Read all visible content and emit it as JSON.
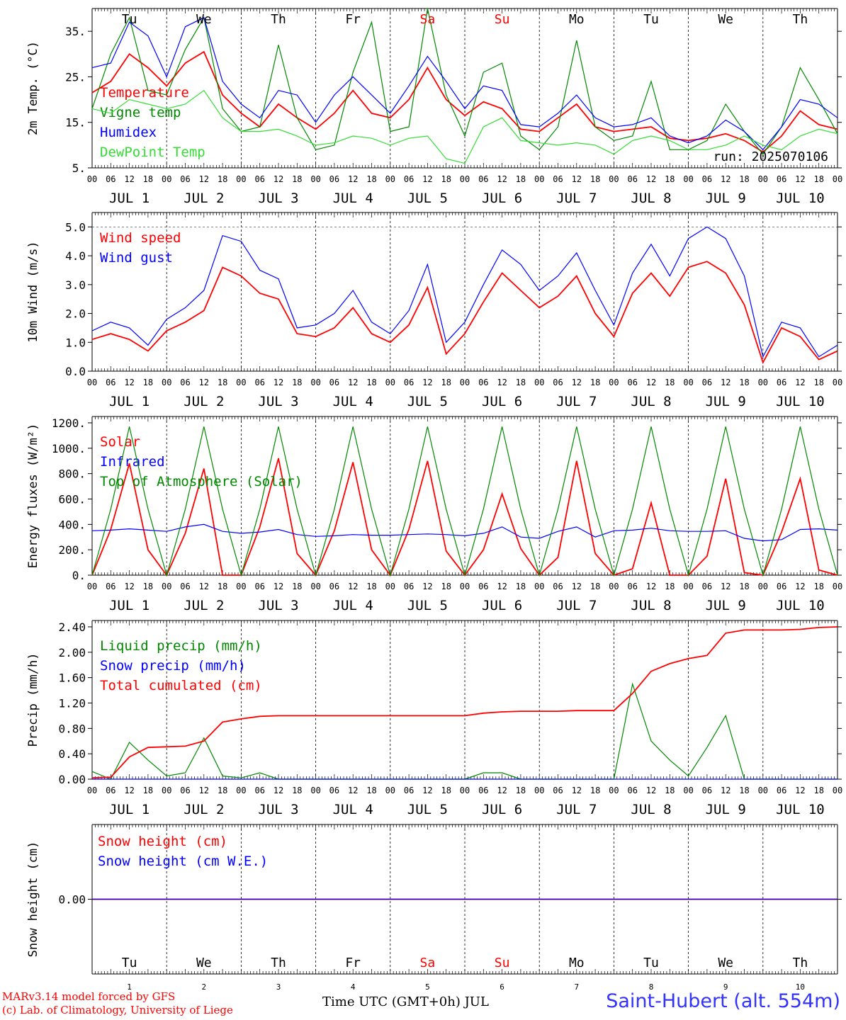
{
  "run": "run: 2025070106",
  "station": "Saint-Hubert (alt. 554m)",
  "credits": [
    "MARv3.14 model forced by GFS",
    "(c) Lab. of Climatology, University of Liege"
  ],
  "time_axis_label": "Time UTC (GMT+0h) JUL",
  "day_names": [
    "Tu",
    "We",
    "Th",
    "Fr",
    "Sa",
    "Su",
    "Mo",
    "Tu",
    "We",
    "Th"
  ],
  "day_name_colors": [
    "#000000",
    "#000000",
    "#000000",
    "#000000",
    "#ff0000",
    "#ff0000",
    "#000000",
    "#000000",
    "#000000",
    "#000000"
  ],
  "day_labels": [
    "JUL  1",
    "JUL  2",
    "JUL  3",
    "JUL  4",
    "JUL  5",
    "JUL  6",
    "JUL  7",
    "JUL  8",
    "JUL  9",
    "JUL 10"
  ],
  "day_numbers": [
    "1",
    "2",
    "3",
    "4",
    "5",
    "6",
    "7",
    "8",
    "9",
    "10"
  ],
  "hour_ticks": [
    "00",
    "06",
    "12",
    "18"
  ],
  "chart_data": [
    {
      "type": "line",
      "ylabel": "2m Temp. (°C)",
      "ylim": [
        5,
        40
      ],
      "yticks": [
        "5.",
        "15.",
        "25.",
        "35."
      ],
      "ytick_values": [
        5,
        15,
        25,
        35
      ],
      "x_hours": [
        0,
        6,
        12,
        18,
        24,
        30,
        36,
        42,
        48,
        54,
        60,
        66,
        72,
        78,
        84,
        90,
        96,
        102,
        108,
        114,
        120,
        126,
        132,
        138,
        144,
        150,
        156,
        162,
        168,
        174,
        180,
        186,
        192,
        198,
        204,
        210,
        216,
        222,
        228,
        234,
        240
      ],
      "series": [
        {
          "name": "Temperature",
          "color": "#ff0000",
          "values": [
            21.5,
            24,
            30,
            27,
            23,
            28,
            30.5,
            21,
            17,
            14,
            19,
            16,
            13.5,
            17,
            22,
            17,
            16,
            20,
            27,
            20,
            16.5,
            19.5,
            18,
            13.5,
            13,
            16,
            19,
            14,
            13,
            13.5,
            14,
            11.5,
            11,
            11.5,
            12.5,
            11,
            8.5,
            12,
            17.5,
            14.5,
            13.5
          ]
        },
        {
          "name": "Vigne temp",
          "color": "#008800",
          "values": [
            18,
            30,
            38,
            22,
            21,
            31,
            38,
            18,
            13,
            14,
            32,
            16,
            9,
            10,
            26,
            37,
            13,
            14,
            40,
            21,
            12,
            26,
            28,
            12,
            9,
            14,
            33,
            14,
            11,
            12,
            24,
            9,
            9,
            11,
            19,
            13,
            8,
            14,
            27,
            20,
            12.5
          ]
        },
        {
          "name": "Humidex",
          "color": "#0000ff",
          "values": [
            27,
            28,
            37,
            34,
            25,
            36,
            38,
            24,
            19,
            16,
            22,
            21,
            15,
            21,
            25,
            21,
            17,
            23,
            29.5,
            24,
            18,
            23,
            22,
            14.5,
            14,
            17,
            21,
            16,
            14,
            14.5,
            16,
            12,
            10.5,
            12,
            15.5,
            13,
            9,
            14,
            20,
            19,
            16
          ]
        },
        {
          "name": "DewPoint Temp",
          "color": "#33dd33",
          "values": [
            18,
            17,
            20,
            19,
            18,
            19,
            22,
            16,
            13,
            13,
            13.5,
            12,
            10,
            10.5,
            12,
            11.5,
            10,
            11.5,
            12,
            7,
            6,
            14,
            16,
            11,
            10.5,
            10,
            10.5,
            10,
            8,
            11,
            12,
            11,
            9,
            9,
            10,
            12,
            10,
            9,
            12,
            13.5,
            12.5
          ]
        }
      ]
    },
    {
      "type": "line",
      "ylabel": "10m Wind (m/s)",
      "ylim": [
        0,
        5.5
      ],
      "yticks": [
        "0.0",
        "1.0",
        "2.0",
        "3.0",
        "4.0",
        "5.0"
      ],
      "ytick_values": [
        0,
        1,
        2,
        3,
        4,
        5
      ],
      "x_hours": [
        0,
        6,
        12,
        18,
        24,
        30,
        36,
        42,
        48,
        54,
        60,
        66,
        72,
        78,
        84,
        90,
        96,
        102,
        108,
        114,
        120,
        126,
        132,
        138,
        144,
        150,
        156,
        162,
        168,
        174,
        180,
        186,
        192,
        198,
        204,
        210,
        216,
        222,
        228,
        234,
        240
      ],
      "series": [
        {
          "name": "Wind speed",
          "color": "#ff0000",
          "values": [
            1.1,
            1.3,
            1.1,
            0.7,
            1.4,
            1.7,
            2.1,
            3.6,
            3.3,
            2.7,
            2.5,
            1.3,
            1.2,
            1.5,
            2.2,
            1.3,
            1.0,
            1.6,
            2.9,
            0.6,
            1.3,
            2.4,
            3.4,
            2.8,
            2.2,
            2.6,
            3.3,
            2.0,
            1.2,
            2.7,
            3.4,
            2.6,
            3.6,
            3.8,
            3.4,
            2.3,
            0.3,
            1.5,
            1.2,
            0.4,
            0.7
          ]
        },
        {
          "name": "Wind gust",
          "color": "#0000ff",
          "values": [
            1.4,
            1.7,
            1.5,
            0.9,
            1.8,
            2.2,
            2.8,
            4.7,
            4.5,
            3.5,
            3.2,
            1.5,
            1.6,
            2.0,
            2.8,
            1.7,
            1.3,
            2.1,
            3.7,
            1.0,
            1.7,
            3.0,
            4.2,
            3.7,
            2.8,
            3.3,
            4.1,
            2.8,
            1.6,
            3.4,
            4.4,
            3.3,
            4.6,
            5.0,
            4.6,
            3.3,
            0.5,
            1.7,
            1.5,
            0.5,
            0.9
          ]
        }
      ]
    },
    {
      "type": "line",
      "ylabel": "Energy fluxes (W/m²)",
      "ylim": [
        0,
        1250
      ],
      "yticks": [
        "0.",
        "200.",
        "400.",
        "600.",
        "800.",
        "1000.",
        "1200."
      ],
      "ytick_values": [
        0,
        200,
        400,
        600,
        800,
        1000,
        1200
      ],
      "x_hours": [
        0,
        6,
        12,
        18,
        24,
        30,
        36,
        42,
        48,
        54,
        60,
        66,
        72,
        78,
        84,
        90,
        96,
        102,
        108,
        114,
        120,
        126,
        132,
        138,
        144,
        150,
        156,
        162,
        168,
        174,
        180,
        186,
        192,
        198,
        204,
        210,
        216,
        222,
        228,
        234,
        240
      ],
      "series": [
        {
          "name": "Solar",
          "color": "#ff0000",
          "values": [
            0,
            360,
            880,
            200,
            0,
            330,
            840,
            0,
            0,
            380,
            920,
            170,
            0,
            350,
            890,
            200,
            0,
            360,
            900,
            190,
            0,
            200,
            640,
            210,
            0,
            140,
            900,
            170,
            0,
            50,
            570,
            0,
            0,
            150,
            760,
            20,
            0,
            340,
            760,
            40,
            0
          ]
        },
        {
          "name": "Infrared",
          "color": "#0000ff",
          "values": [
            350,
            355,
            365,
            355,
            345,
            380,
            400,
            345,
            330,
            340,
            360,
            320,
            305,
            310,
            320,
            315,
            315,
            320,
            325,
            320,
            310,
            330,
            380,
            300,
            290,
            345,
            380,
            300,
            350,
            355,
            370,
            350,
            345,
            345,
            350,
            290,
            270,
            280,
            360,
            365,
            355
          ]
        },
        {
          "name": "Top of Atmosphere (Solar)",
          "color": "#008800",
          "values": [
            0,
            520,
            1170,
            520,
            0,
            520,
            1170,
            520,
            0,
            520,
            1170,
            520,
            0,
            520,
            1170,
            520,
            0,
            520,
            1170,
            520,
            0,
            520,
            1170,
            520,
            0,
            520,
            1170,
            520,
            0,
            520,
            1170,
            520,
            0,
            520,
            1170,
            520,
            0,
            520,
            1170,
            520,
            0
          ]
        }
      ]
    },
    {
      "type": "line",
      "ylabel": "Precip (mm/h)",
      "ylim": [
        0,
        2.5
      ],
      "yticks": [
        "0.00",
        "0.40",
        "0.80",
        "1.20",
        "1.60",
        "2.00",
        "2.40"
      ],
      "ytick_values": [
        0,
        0.4,
        0.8,
        1.2,
        1.6,
        2.0,
        2.4
      ],
      "x_hours": [
        0,
        6,
        12,
        18,
        24,
        30,
        36,
        42,
        48,
        54,
        60,
        66,
        72,
        78,
        84,
        90,
        96,
        102,
        108,
        114,
        120,
        126,
        132,
        138,
        144,
        150,
        156,
        162,
        168,
        174,
        180,
        186,
        192,
        198,
        204,
        210,
        216,
        222,
        228,
        234,
        240
      ],
      "series": [
        {
          "name": "Liquid precip (mm/h)",
          "color": "#008800",
          "values": [
            0.12,
            0,
            0.58,
            0.3,
            0.05,
            0.1,
            0.65,
            0.05,
            0.02,
            0.1,
            0,
            0,
            0,
            0,
            0,
            0,
            0,
            0,
            0,
            0,
            0,
            0.1,
            0.1,
            0,
            0,
            0,
            0,
            0,
            0,
            1.5,
            0.6,
            0.3,
            0.05,
            0.5,
            1.0,
            0,
            0,
            0,
            0,
            0,
            0
          ]
        },
        {
          "name": "Snow precip (mm/h)",
          "color": "#0000ff",
          "values": [
            0,
            0,
            0,
            0,
            0,
            0,
            0,
            0,
            0,
            0,
            0,
            0,
            0,
            0,
            0,
            0,
            0,
            0,
            0,
            0,
            0,
            0,
            0,
            0,
            0,
            0,
            0,
            0,
            0,
            0,
            0,
            0,
            0,
            0,
            0,
            0,
            0,
            0,
            0,
            0,
            0
          ]
        },
        {
          "name": "Total cumulated (cm)",
          "color": "#ff0000",
          "values": [
            0.02,
            0.03,
            0.35,
            0.5,
            0.51,
            0.52,
            0.6,
            0.9,
            0.95,
            0.99,
            1.0,
            1.0,
            1.0,
            1.0,
            1.0,
            1.0,
            1.0,
            1.0,
            1.0,
            1.0,
            1.0,
            1.04,
            1.06,
            1.07,
            1.07,
            1.07,
            1.08,
            1.08,
            1.08,
            1.35,
            1.7,
            1.82,
            1.9,
            1.95,
            2.3,
            2.35,
            2.35,
            2.35,
            2.36,
            2.39,
            2.4
          ]
        }
      ]
    },
    {
      "type": "line",
      "ylabel": "Snow height (cm)",
      "ylim": [
        -1,
        1
      ],
      "yticks": [
        "0.00"
      ],
      "ytick_values": [
        0
      ],
      "x_hours": [
        0,
        240
      ],
      "series": [
        {
          "name": "Snow height (cm)",
          "color": "#ff0000",
          "values": [
            0,
            0
          ]
        },
        {
          "name": "Snow height (cm W.E.)",
          "color": "#0000ff",
          "values": [
            0,
            0
          ]
        }
      ]
    }
  ]
}
